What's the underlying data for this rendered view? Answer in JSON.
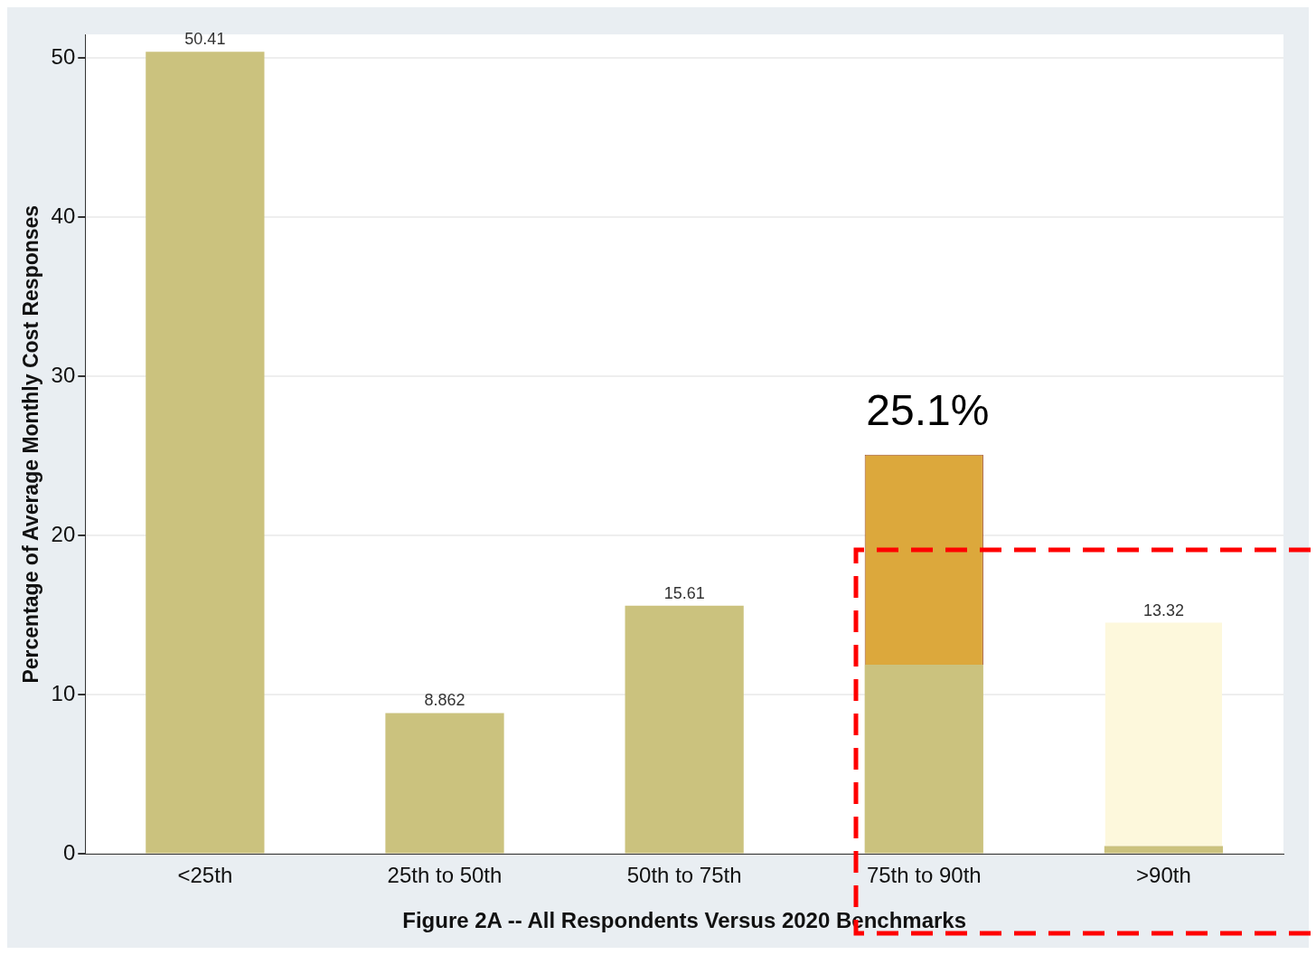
{
  "chart_data": {
    "type": "bar",
    "stacked": true,
    "xlabel": "Figure 2A -- All Respondents Versus 2020 Benchmarks",
    "ylabel": "Percentage of Average Monthly Cost Responses",
    "categories": [
      "<25th",
      "25th to 50th",
      "50th to 75th",
      "75th to 90th",
      ">90th"
    ],
    "series": [
      {
        "color": "#cbc27e",
        "values": [
          50.41,
          8.862,
          15.61,
          11.9,
          0.5
        ],
        "value_labels": [
          "50.41",
          "8.862",
          "15.61",
          null,
          null
        ]
      },
      {
        "colors": [
          null,
          null,
          null,
          "#dca83c",
          "#fdf8dc"
        ],
        "values": [
          null,
          null,
          null,
          13.2,
          14.1
        ]
      }
    ],
    "totals": [
      null,
      null,
      null,
      "25.1%",
      null
    ],
    "annotations": [
      "13.32"
    ],
    "ylim": [
      0,
      51.5
    ],
    "yticks": [
      0,
      10,
      20,
      30,
      40,
      50
    ],
    "grid": "y",
    "legend": false
  }
}
